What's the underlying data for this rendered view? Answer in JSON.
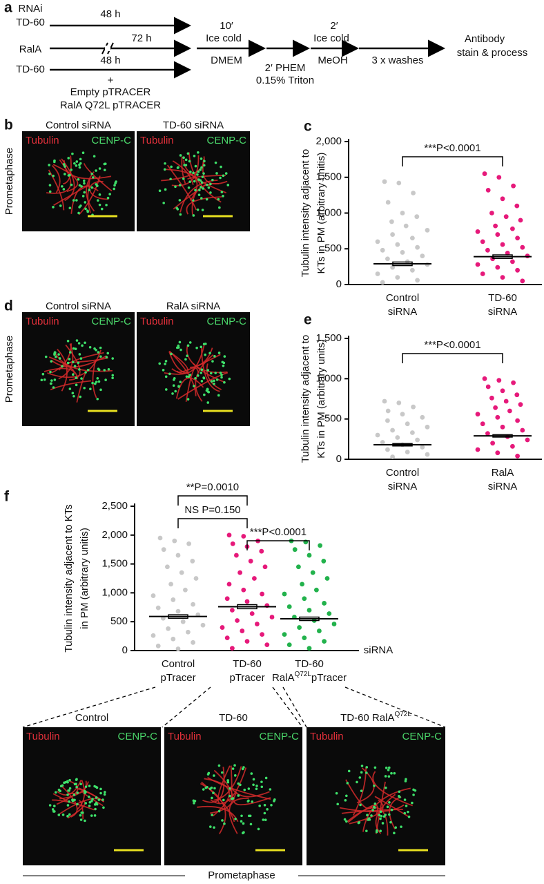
{
  "protocol": {
    "panel": "a",
    "rnai": "RNAi",
    "td60_top": "TD-60",
    "time_top": "48 h",
    "rala": "RalA",
    "time_mid": "72 h",
    "td60_bottom": "TD-60",
    "time_bottom": "48 h",
    "plus": "+",
    "plasmid_1": "Empty pTRACER",
    "plasmid_2": "RalA Q72L pTRACER",
    "step1_time": "10′",
    "step1_a": "Ice  cold",
    "step1_b": "DMEM",
    "step2_a": "2′ PHEM",
    "step2_b": "0.15% Triton",
    "step3_time": "2′",
    "step3_a": "Ice cold",
    "step3_b": "MeOH",
    "step4": "3 x washes",
    "end_a": "Antibody",
    "end_b": "stain & process"
  },
  "images": [
    {
      "panel": "b",
      "side_label": "Prometaphase",
      "tiles": [
        {
          "title": "Control siRNA",
          "left": "Tubulin",
          "right": "CENP-C"
        },
        {
          "title": "TD-60 siRNA",
          "left": "Tubulin",
          "right": "CENP-C"
        }
      ]
    },
    {
      "panel": "d",
      "side_label": "Prometaphase",
      "tiles": [
        {
          "title": "Control siRNA",
          "left": "Tubulin",
          "right": "CENP-C"
        },
        {
          "title": "RalA siRNA",
          "left": "Tubulin",
          "right": "CENP-C"
        }
      ]
    },
    {
      "bottom_label": "Prometaphase",
      "tiles": [
        {
          "title": [
            "Control"
          ],
          "left": "Tubulin",
          "right": "CENP-C"
        },
        {
          "title": [
            "TD-60"
          ],
          "left": "Tubulin",
          "right": "CENP-C"
        },
        {
          "title": [
            "TD-60 RalA",
            "Q72L"
          ],
          "left": "Tubulin",
          "right": "CENP-C"
        }
      ]
    }
  ],
  "chart_data": [
    {
      "type": "dot",
      "panel": "c",
      "y_label": [
        "Tubulin intensity adjacent to",
        "KTs in PM (arbitrary unitis)"
      ],
      "annotations": [
        "***P<0.0001"
      ],
      "ylim": [
        0,
        2000
      ],
      "yticks": [
        0,
        500,
        {
          "value": 1000,
          "label": "1,000"
        },
        {
          "value": 1500,
          "label": "1,500"
        },
        {
          "value": 2000,
          "label": "2,000"
        }
      ],
      "categories": [
        [
          "Control",
          "siRNA"
        ],
        [
          "TD-60",
          "siRNA"
        ]
      ],
      "groups": [
        {
          "color": "#c8c8c8",
          "mean": 290,
          "sem": 25,
          "values": [
            1440,
            1420,
            1280,
            1150,
            1000,
            950,
            880,
            820,
            760,
            700,
            650,
            600,
            560,
            520,
            480,
            450,
            400,
            360,
            320,
            280,
            240,
            200,
            150,
            100,
            60,
            30
          ]
        },
        {
          "color": "#e6197a",
          "mean": 390,
          "sem": 25,
          "values": [
            1550,
            1500,
            1380,
            1320,
            1200,
            1100,
            1000,
            950,
            900,
            820,
            780,
            740,
            700,
            650,
            600,
            560,
            520,
            480,
            440,
            400,
            360,
            320,
            280,
            240,
            200,
            150,
            100,
            50
          ]
        }
      ]
    },
    {
      "type": "dot",
      "panel": "e",
      "y_label": [
        "Tubulin intensity adjacent to",
        "KTs in PM (arbitrary units)"
      ],
      "annotations": [
        "***P<0.0001"
      ],
      "ylim": [
        0,
        1500
      ],
      "yticks": [
        0,
        500,
        {
          "value": 1000,
          "label": "1,000"
        },
        {
          "value": 1500,
          "label": "1,500"
        }
      ],
      "categories": [
        [
          "Control",
          "siRNA"
        ],
        [
          "RalA",
          "siRNA"
        ]
      ],
      "groups": [
        {
          "color": "#c8c8c8",
          "mean": 180,
          "sem": 15,
          "values": [
            720,
            700,
            650,
            600,
            560,
            520,
            480,
            440,
            400,
            360,
            330,
            300,
            270,
            240,
            210,
            180,
            150,
            120,
            90,
            60,
            30
          ]
        },
        {
          "color": "#e6197a",
          "mean": 290,
          "sem": 15,
          "values": [
            1000,
            980,
            950,
            900,
            850,
            800,
            760,
            720,
            680,
            640,
            600,
            560,
            520,
            480,
            440,
            400,
            360,
            320,
            280,
            240,
            200,
            160,
            120,
            80,
            40
          ]
        }
      ]
    },
    {
      "type": "dot",
      "panel": "f",
      "y_label": [
        "Tubulin intensity adjacent to KTs",
        "in PM (arbitrary unitis)"
      ],
      "annotations": [
        "**P=0.0010",
        "NS  P=0.150",
        "***P<0.0001"
      ],
      "x_label": "siRNA",
      "ylim": [
        0,
        2500
      ],
      "yticks": [
        0,
        500,
        {
          "value": 1000,
          "label": "1,000"
        },
        {
          "value": 1500,
          "label": "1,500"
        },
        {
          "value": 2000,
          "label": "2,000"
        },
        {
          "value": 2500,
          "label": "2,500"
        }
      ],
      "categories": [
        [
          "Control",
          "pTracer"
        ],
        [
          "TD-60",
          "pTracer"
        ],
        [
          "TD-60",
          "RalA",
          "Q72L",
          "pTracer"
        ]
      ],
      "groups": [
        {
          "color": "#c8c8c8",
          "mean": 590,
          "sem": 30,
          "values": [
            1950,
            1900,
            1850,
            1750,
            1650,
            1550,
            1450,
            1350,
            1250,
            1150,
            1050,
            950,
            880,
            800,
            740,
            680,
            620,
            560,
            500,
            440,
            380,
            320,
            260,
            200,
            140,
            80,
            30
          ]
        },
        {
          "color": "#e6197a",
          "mean": 760,
          "sem": 35,
          "values": [
            2000,
            1980,
            1900,
            1850,
            1800,
            1720,
            1650,
            1550,
            1450,
            1350,
            1250,
            1150,
            1050,
            980,
            900,
            850,
            780,
            700,
            640,
            580,
            520,
            460,
            400,
            340,
            280,
            220,
            160,
            100,
            40
          ]
        },
        {
          "color": "#22b24c",
          "mean": 550,
          "sem": 30,
          "values": [
            1900,
            1880,
            1820,
            1750,
            1650,
            1550,
            1450,
            1350,
            1250,
            1150,
            1050,
            980,
            900,
            820,
            760,
            700,
            640,
            580,
            520,
            460,
            400,
            340,
            280,
            220,
            160,
            100,
            40
          ]
        }
      ]
    }
  ]
}
